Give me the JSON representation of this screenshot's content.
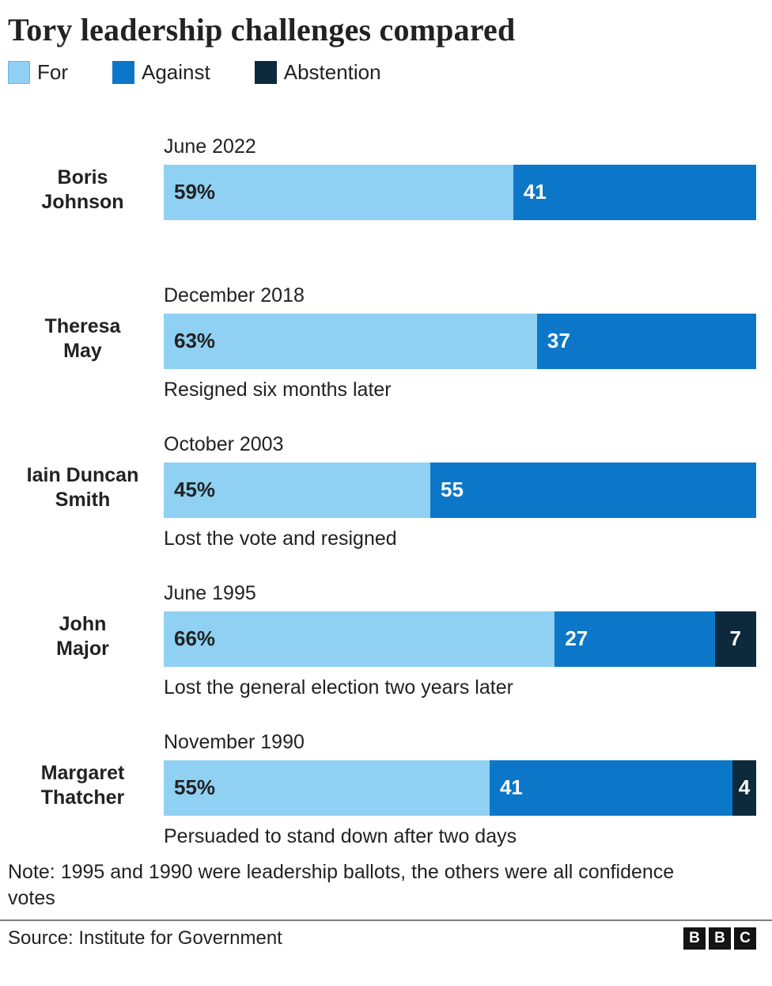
{
  "title": "Tory leadership challenges compared",
  "colors": {
    "for": "#90D0F2",
    "against": "#0C77C8",
    "abstention": "#0D2A3C",
    "text": "#222222"
  },
  "legend": [
    {
      "label": "For"
    },
    {
      "label": "Against"
    },
    {
      "label": "Abstention"
    }
  ],
  "chart_data": {
    "type": "bar",
    "orientation": "horizontal-stacked",
    "title": "Tory leadership challenges compared",
    "categories": [
      "Boris Johnson",
      "Theresa May",
      "Iain Duncan Smith",
      "John Major",
      "Margaret Thatcher"
    ],
    "series": [
      {
        "name": "For",
        "values": [
          59,
          63,
          45,
          66,
          55
        ]
      },
      {
        "name": "Against",
        "values": [
          41,
          37,
          55,
          27,
          41
        ]
      },
      {
        "name": "Abstention",
        "values": [
          0,
          0,
          0,
          7,
          4
        ]
      }
    ],
    "xlim": [
      0,
      100
    ],
    "legend_position": "top",
    "grid": false
  },
  "rows": [
    {
      "name_line1": "Boris",
      "name_line2": "Johnson",
      "date": "June 2022",
      "values": {
        "for": 59,
        "against": 41,
        "abstention": 0
      },
      "labels": {
        "for": "59%",
        "against": "41",
        "abstention": ""
      },
      "footnote": ""
    },
    {
      "name_line1": "Theresa",
      "name_line2": "May",
      "date": "December 2018",
      "values": {
        "for": 63,
        "against": 37,
        "abstention": 0
      },
      "labels": {
        "for": "63%",
        "against": "37",
        "abstention": ""
      },
      "footnote": "Resigned six months later"
    },
    {
      "name_line1": "Iain Duncan",
      "name_line2": "Smith",
      "date": "October 2003",
      "values": {
        "for": 45,
        "against": 55,
        "abstention": 0
      },
      "labels": {
        "for": "45%",
        "against": "55",
        "abstention": ""
      },
      "footnote": "Lost the vote and resigned"
    },
    {
      "name_line1": "John",
      "name_line2": "Major",
      "date": "June 1995",
      "values": {
        "for": 66,
        "against": 27,
        "abstention": 7
      },
      "labels": {
        "for": "66%",
        "against": "27",
        "abstention": "7"
      },
      "footnote": "Lost the general election two years later"
    },
    {
      "name_line1": "Margaret",
      "name_line2": "Thatcher",
      "date": "November 1990",
      "values": {
        "for": 55,
        "against": 41,
        "abstention": 4
      },
      "labels": {
        "for": "55%",
        "against": "41",
        "abstention": "4"
      },
      "footnote": "Persuaded to stand down after two days"
    }
  ],
  "note": "Note: 1995 and 1990 were leadership ballots, the others were all confidence votes",
  "source": "Source: Institute for Government",
  "logo": {
    "b1": "B",
    "b2": "B",
    "b3": "C"
  }
}
